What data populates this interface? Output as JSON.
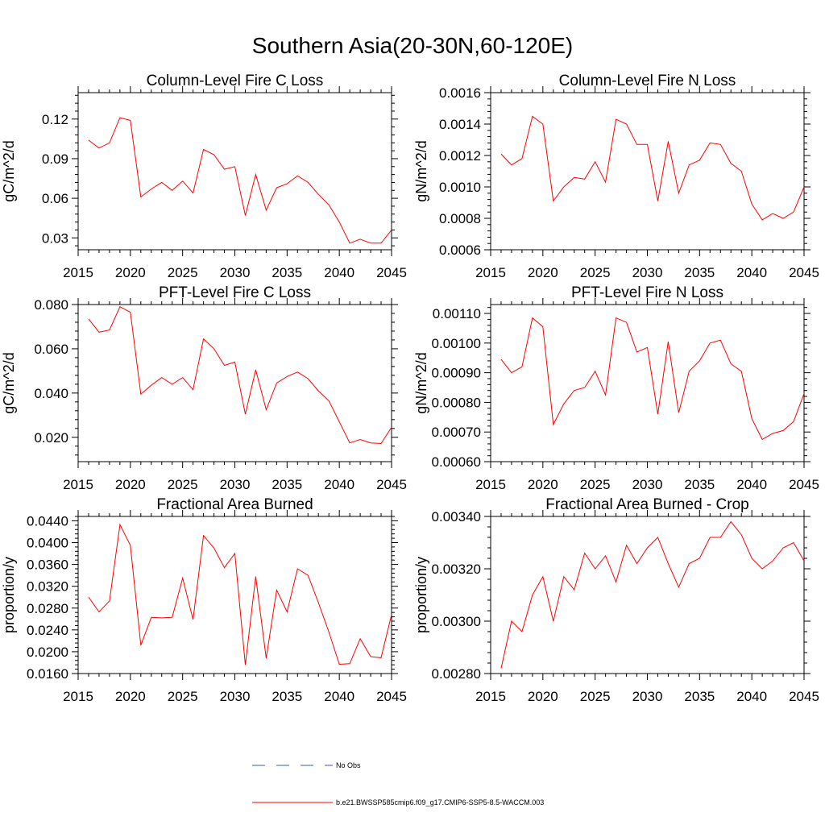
{
  "title": "Southern Asia(20-30N,60-120E)",
  "colors": {
    "series": "#ff0000",
    "no_obs": "#3c5ab4",
    "axis": "#000000"
  },
  "legend": [
    {
      "label": "No Obs",
      "style": "dashed",
      "color": "#3c5ab4"
    },
    {
      "label": "b.e21.BWSSP585cmip6.f09_g17.CMIP6-SSP5-8.5-WACCM.003",
      "style": "solid",
      "color": "#ff0000"
    }
  ],
  "chart_data": [
    {
      "type": "line",
      "title": "Column-Level Fire C Loss",
      "xlabel": "",
      "ylabel": "gC/m^2/d",
      "xlim": [
        2015,
        2045
      ],
      "ylim": [
        0.021,
        0.14
      ],
      "xticks": [
        2015,
        2020,
        2025,
        2030,
        2035,
        2040,
        2045
      ],
      "xtick_labels": [
        "2015",
        "2020",
        "2025",
        "2030",
        "2035",
        "2040",
        "2045"
      ],
      "yticks": [
        0.03,
        0.06,
        0.09,
        0.12
      ],
      "ytick_labels": [
        "0.03",
        "0.06",
        "0.09",
        "0.12"
      ],
      "series": [
        {
          "name": "b.e21.BWSSP585cmip6.f09_g17.CMIP6-SSP5-8.5-WACCM.003",
          "x": [
            2016,
            2017,
            2018,
            2019,
            2020,
            2021,
            2022,
            2023,
            2024,
            2025,
            2026,
            2027,
            2028,
            2029,
            2030,
            2031,
            2032,
            2033,
            2034,
            2035,
            2036,
            2037,
            2038,
            2039,
            2040,
            2041,
            2042,
            2043,
            2044,
            2045
          ],
          "values": [
            0.104,
            0.098,
            0.102,
            0.121,
            0.119,
            0.061,
            0.067,
            0.072,
            0.066,
            0.073,
            0.064,
            0.097,
            0.093,
            0.082,
            0.084,
            0.047,
            0.078,
            0.051,
            0.068,
            0.071,
            0.077,
            0.072,
            0.063,
            0.055,
            0.042,
            0.026,
            0.029,
            0.026,
            0.026,
            0.036
          ]
        }
      ]
    },
    {
      "type": "line",
      "title": "Column-Level Fire N Loss",
      "xlabel": "",
      "ylabel": "gN/m^2/d",
      "xlim": [
        2015,
        2045
      ],
      "ylim": [
        0.0006,
        0.0016
      ],
      "xticks": [
        2015,
        2020,
        2025,
        2030,
        2035,
        2040,
        2045
      ],
      "xtick_labels": [
        "2015",
        "2020",
        "2025",
        "2030",
        "2035",
        "2040",
        "2045"
      ],
      "yticks": [
        0.0006,
        0.0008,
        0.001,
        0.0012,
        0.0014,
        0.0016
      ],
      "ytick_labels": [
        "0.0006",
        "0.0008",
        "0.0010",
        "0.0012",
        "0.0014",
        "0.0016"
      ],
      "series": [
        {
          "name": "b.e21.BWSSP585cmip6.f09_g17.CMIP6-SSP5-8.5-WACCM.003",
          "x": [
            2016,
            2017,
            2018,
            2019,
            2020,
            2021,
            2022,
            2023,
            2024,
            2025,
            2026,
            2027,
            2028,
            2029,
            2030,
            2031,
            2032,
            2033,
            2034,
            2035,
            2036,
            2037,
            2038,
            2039,
            2040,
            2041,
            2042,
            2043,
            2044,
            2045
          ],
          "values": [
            0.00121,
            0.00114,
            0.00118,
            0.00145,
            0.0014,
            0.00091,
            0.001,
            0.00106,
            0.00105,
            0.00116,
            0.00103,
            0.00143,
            0.0014,
            0.00127,
            0.00127,
            0.00091,
            0.00129,
            0.00096,
            0.00114,
            0.00117,
            0.00128,
            0.00127,
            0.00115,
            0.0011,
            0.00089,
            0.00079,
            0.00083,
            0.0008,
            0.00084,
            0.001
          ]
        }
      ]
    },
    {
      "type": "line",
      "title": "PFT-Level Fire C Loss",
      "xlabel": "",
      "ylabel": "gC/m^2/d",
      "xlim": [
        2015,
        2045
      ],
      "ylim": [
        0.009,
        0.08
      ],
      "xticks": [
        2015,
        2020,
        2025,
        2030,
        2035,
        2040,
        2045
      ],
      "xtick_labels": [
        "2015",
        "2020",
        "2025",
        "2030",
        "2035",
        "2040",
        "2045"
      ],
      "yticks": [
        0.02,
        0.04,
        0.06,
        0.08
      ],
      "ytick_labels": [
        "0.020",
        "0.040",
        "0.060",
        "0.080"
      ],
      "series": [
        {
          "name": "b.e21.BWSSP585cmip6.f09_g17.CMIP6-SSP5-8.5-WACCM.003",
          "x": [
            2016,
            2017,
            2018,
            2019,
            2020,
            2021,
            2022,
            2023,
            2024,
            2025,
            2026,
            2027,
            2028,
            2029,
            2030,
            2031,
            2032,
            2033,
            2034,
            2035,
            2036,
            2037,
            2038,
            2039,
            2040,
            2041,
            2042,
            2043,
            2044,
            2045
          ],
          "values": [
            0.0735,
            0.0675,
            0.0685,
            0.079,
            0.0765,
            0.0395,
            0.0435,
            0.047,
            0.044,
            0.047,
            0.0415,
            0.0645,
            0.06,
            0.0525,
            0.054,
            0.0305,
            0.0505,
            0.0325,
            0.0445,
            0.0475,
            0.0495,
            0.0465,
            0.041,
            0.0365,
            0.027,
            0.0175,
            0.019,
            0.0175,
            0.0172,
            0.0245
          ]
        }
      ]
    },
    {
      "type": "line",
      "title": "PFT-Level Fire N Loss",
      "xlabel": "",
      "ylabel": "gN/m^2/d",
      "xlim": [
        2015,
        2045
      ],
      "ylim": [
        0.0006,
        0.00113
      ],
      "xticks": [
        2015,
        2020,
        2025,
        2030,
        2035,
        2040,
        2045
      ],
      "xtick_labels": [
        "2015",
        "2020",
        "2025",
        "2030",
        "2035",
        "2040",
        "2045"
      ],
      "yticks": [
        0.0006,
        0.0007,
        0.0008,
        0.0009,
        0.001,
        0.0011
      ],
      "ytick_labels": [
        "0.00060",
        "0.00070",
        "0.00080",
        "0.00090",
        "0.00100",
        "0.00110"
      ],
      "series": [
        {
          "name": "b.e21.BWSSP585cmip6.f09_g17.CMIP6-SSP5-8.5-WACCM.003",
          "x": [
            2016,
            2017,
            2018,
            2019,
            2020,
            2021,
            2022,
            2023,
            2024,
            2025,
            2026,
            2027,
            2028,
            2029,
            2030,
            2031,
            2032,
            2033,
            2034,
            2035,
            2036,
            2037,
            2038,
            2039,
            2040,
            2041,
            2042,
            2043,
            2044,
            2045
          ],
          "values": [
            0.000945,
            0.0009,
            0.00092,
            0.001085,
            0.001055,
            0.000725,
            0.000795,
            0.00084,
            0.00085,
            0.000905,
            0.000825,
            0.001085,
            0.00107,
            0.00097,
            0.000985,
            0.00076,
            0.001005,
            0.000765,
            0.000905,
            0.00094,
            0.001,
            0.00101,
            0.00093,
            0.000905,
            0.000745,
            0.000675,
            0.000695,
            0.000705,
            0.000735,
            0.00083
          ]
        }
      ]
    },
    {
      "type": "line",
      "title": "Fractional Area Burned",
      "xlabel": "",
      "ylabel": "proportion/y",
      "xlim": [
        2015,
        2045
      ],
      "ylim": [
        0.016,
        0.0448
      ],
      "xticks": [
        2015,
        2020,
        2025,
        2030,
        2035,
        2040,
        2045
      ],
      "xtick_labels": [
        "2015",
        "2020",
        "2025",
        "2030",
        "2035",
        "2040",
        "2045"
      ],
      "yticks": [
        0.016,
        0.02,
        0.024,
        0.028,
        0.032,
        0.036,
        0.04,
        0.044
      ],
      "ytick_labels": [
        "0.0160",
        "0.0200",
        "0.0240",
        "0.0280",
        "0.0320",
        "0.0360",
        "0.0400",
        "0.0440"
      ],
      "series": [
        {
          "name": "b.e21.BWSSP585cmip6.f09_g17.CMIP6-SSP5-8.5-WACCM.003",
          "x": [
            2016,
            2017,
            2018,
            2019,
            2020,
            2021,
            2022,
            2023,
            2024,
            2025,
            2026,
            2027,
            2028,
            2029,
            2030,
            2031,
            2032,
            2033,
            2034,
            2035,
            2036,
            2037,
            2038,
            2039,
            2040,
            2041,
            2042,
            2043,
            2044,
            2045
          ],
          "values": [
            0.03,
            0.0273,
            0.0293,
            0.0433,
            0.0395,
            0.0212,
            0.0263,
            0.0262,
            0.0263,
            0.0335,
            0.0259,
            0.0413,
            0.039,
            0.0354,
            0.038,
            0.0176,
            0.0338,
            0.0188,
            0.0313,
            0.0273,
            0.0352,
            0.034,
            0.029,
            0.0236,
            0.0177,
            0.0178,
            0.0224,
            0.0191,
            0.0189,
            0.0268
          ]
        }
      ]
    },
    {
      "type": "line",
      "title": "Fractional Area Burned - Crop",
      "xlabel": "",
      "ylabel": "proportion/y",
      "xlim": [
        2015,
        2045
      ],
      "ylim": [
        0.0028,
        0.0034
      ],
      "xticks": [
        2015,
        2020,
        2025,
        2030,
        2035,
        2040,
        2045
      ],
      "xtick_labels": [
        "2015",
        "2020",
        "2025",
        "2030",
        "2035",
        "2040",
        "2045"
      ],
      "yticks": [
        0.0028,
        0.003,
        0.0032,
        0.0034
      ],
      "ytick_labels": [
        "0.00280",
        "0.00300",
        "0.00320",
        "0.00340"
      ],
      "series": [
        {
          "name": "b.e21.BWSSP585cmip6.f09_g17.CMIP6-SSP5-8.5-WACCM.003",
          "x": [
            2016,
            2017,
            2018,
            2019,
            2020,
            2021,
            2022,
            2023,
            2024,
            2025,
            2026,
            2027,
            2028,
            2029,
            2030,
            2031,
            2032,
            2033,
            2034,
            2035,
            2036,
            2037,
            2038,
            2039,
            2040,
            2041,
            2042,
            2043,
            2044,
            2045
          ],
          "values": [
            0.00282,
            0.003,
            0.00296,
            0.0031,
            0.00317,
            0.003,
            0.00317,
            0.00312,
            0.00326,
            0.0032,
            0.00325,
            0.00315,
            0.00329,
            0.00322,
            0.00328,
            0.00332,
            0.00322,
            0.00313,
            0.00322,
            0.00324,
            0.00332,
            0.00332,
            0.00338,
            0.00333,
            0.00324,
            0.0032,
            0.00323,
            0.00328,
            0.0033,
            0.00323
          ]
        }
      ]
    }
  ]
}
